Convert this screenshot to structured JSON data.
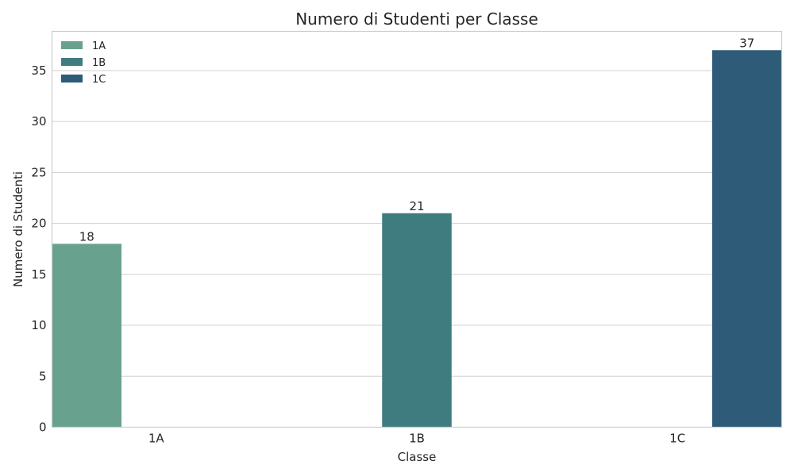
{
  "chart_data": {
    "type": "bar",
    "title": "Numero di Studenti per Classe",
    "xlabel": "Classe",
    "ylabel": "Numero di Studenti",
    "categories": [
      "1A",
      "1B",
      "1C"
    ],
    "series": [
      {
        "name": "1A",
        "values": [
          18,
          null,
          null
        ],
        "color": "#68a28e"
      },
      {
        "name": "1B",
        "values": [
          null,
          21,
          null
        ],
        "color": "#3f7c80"
      },
      {
        "name": "1C",
        "values": [
          null,
          null,
          37
        ],
        "color": "#2d5b78"
      }
    ],
    "data_labels": [
      "18",
      "21",
      "37"
    ],
    "ylim": [
      0,
      38.85
    ],
    "yticks": [
      0,
      5,
      10,
      15,
      20,
      25,
      30,
      35
    ],
    "ytick_labels": [
      "0",
      "5",
      "10",
      "15",
      "20",
      "25",
      "30",
      "35"
    ],
    "grid": true,
    "legend_position": "top-left"
  }
}
